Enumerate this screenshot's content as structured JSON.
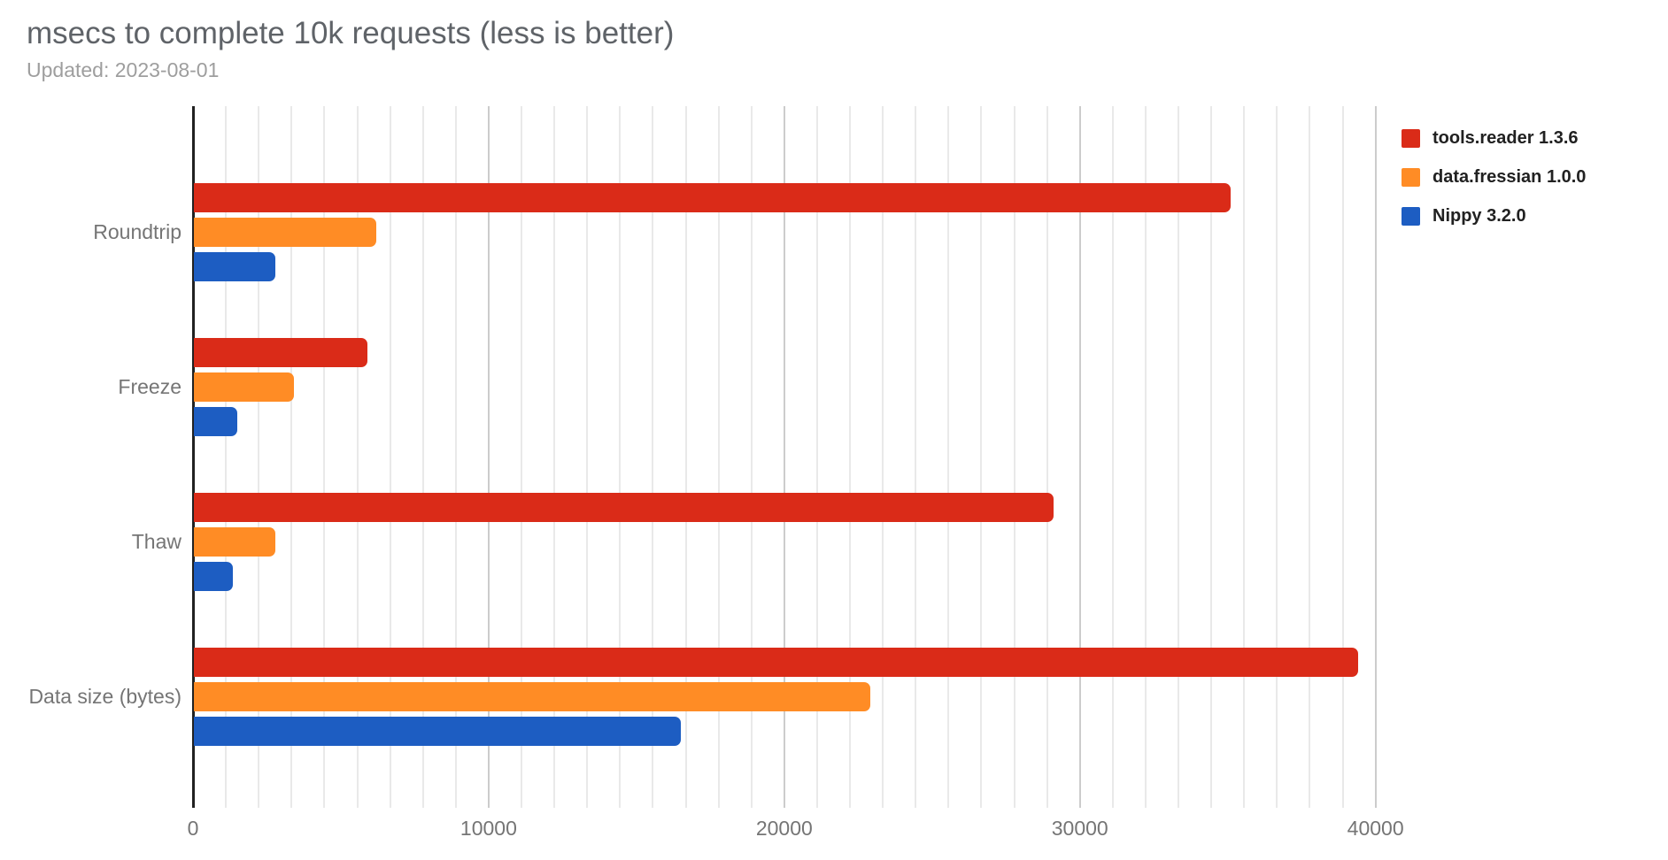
{
  "title": "msecs to complete 10k requests (less is better)",
  "subtitle": "Updated: 2023-08-01",
  "colors": {
    "red": "#da2b18",
    "orange": "#ff8c25",
    "blue": "#1d5dc2",
    "title_text": "#5f6368",
    "subtitle_text": "#9e9e9e",
    "axis_text": "#757575",
    "legend_text": "#212121",
    "axis_line": "#212121",
    "gridline_minor": "#e9e9e9",
    "gridline_major": "#cccccc"
  },
  "chart_data": {
    "type": "bar",
    "orientation": "horizontal",
    "title": "msecs to complete 10k requests (less is better)",
    "subtitle": "Updated: 2023-08-01",
    "categories": [
      "Roundtrip",
      "Freeze",
      "Thaw",
      "Data size (bytes)"
    ],
    "series": [
      {
        "name": "tools.reader 1.3.6",
        "color": "#da2b18",
        "values": [
          35100,
          5900,
          29100,
          39400
        ]
      },
      {
        "name": "data.fressian 1.0.0",
        "color": "#ff8c25",
        "values": [
          6200,
          3400,
          2800,
          22900
        ]
      },
      {
        "name": "Nippy 3.2.0",
        "color": "#1d5dc2",
        "values": [
          2800,
          1500,
          1350,
          16500
        ]
      }
    ],
    "x_ticks": [
      0,
      10000,
      20000,
      30000,
      40000
    ],
    "x_tick_labels": [
      "0",
      "10000",
      "20000",
      "30000",
      "40000"
    ],
    "xlim": [
      0,
      40250
    ],
    "minor_gridlines_between_majors": 8,
    "grid": true,
    "legend_position": "top-right"
  }
}
